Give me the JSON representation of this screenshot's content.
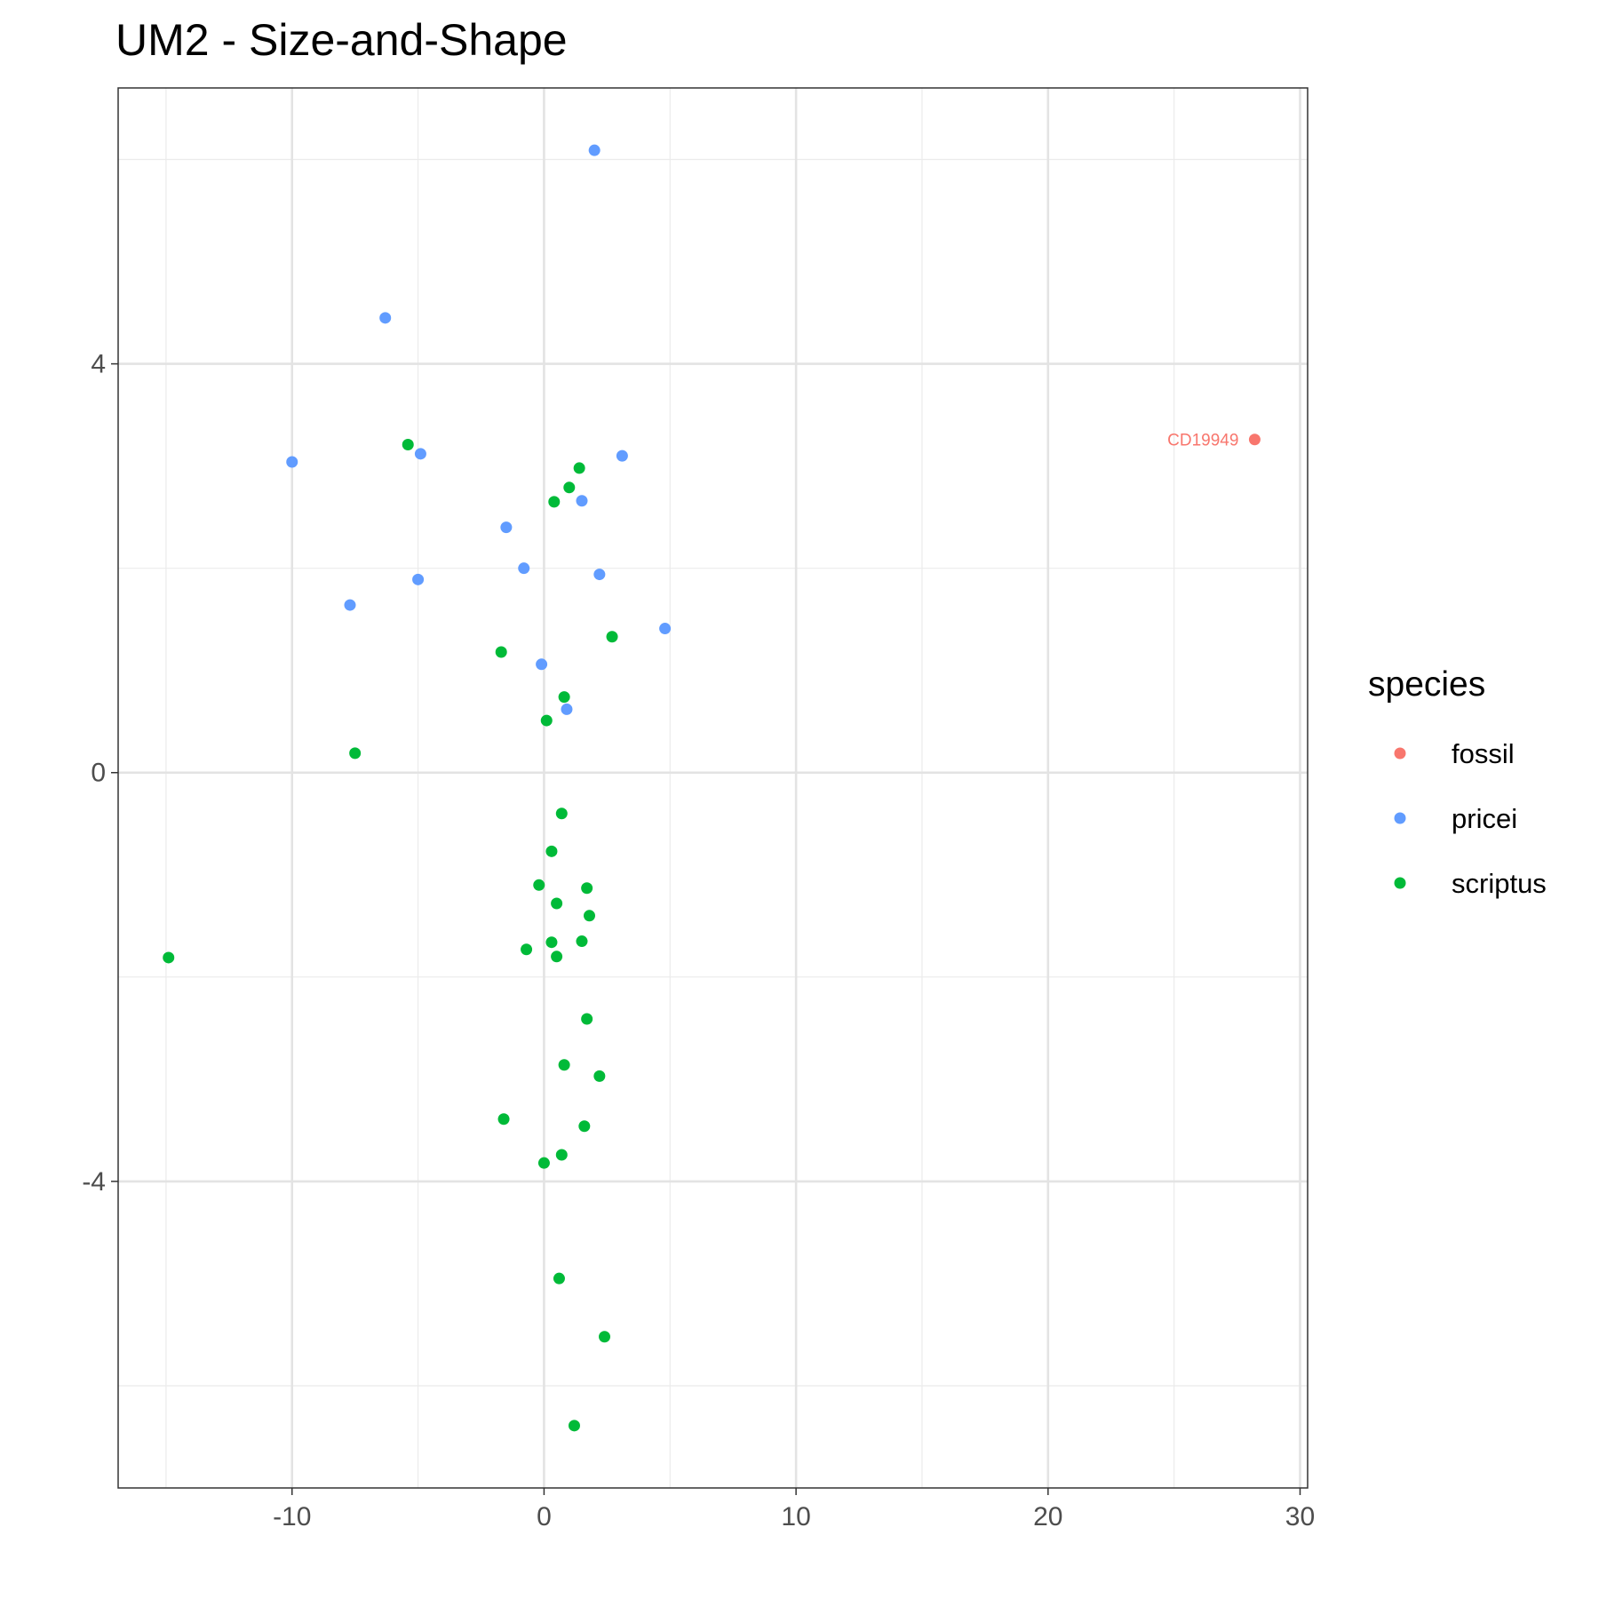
{
  "chart_data": {
    "type": "scatter",
    "title": "UM2 - Size-and-Shape",
    "xlabel": "",
    "ylabel": "",
    "xlim": [
      -16.9,
      30.3
    ],
    "ylim": [
      -7.0,
      6.7
    ],
    "x_major_ticks": [
      -10,
      0,
      10,
      20,
      30
    ],
    "x_minor_ticks": [
      -15,
      -5,
      5,
      15,
      25
    ],
    "y_major_ticks": [
      -4,
      0,
      4
    ],
    "y_minor_ticks": [
      -6,
      -2,
      2,
      6
    ],
    "x_tick_labels": [
      "-10",
      "0",
      "10",
      "20",
      "30"
    ],
    "y_tick_labels": [
      "-4",
      "0",
      "4"
    ],
    "grid": true,
    "legend": {
      "title": "species",
      "placement": "right"
    },
    "series": [
      {
        "name": "fossil",
        "color": "#F8766D",
        "points": [
          {
            "x": 28.2,
            "y": 3.26,
            "label": "CD19949"
          }
        ]
      },
      {
        "name": "pricei",
        "color": "#619CFF",
        "points": [
          {
            "x": 2.0,
            "y": 6.09
          },
          {
            "x": -6.3,
            "y": 4.45
          },
          {
            "x": -10.0,
            "y": 3.04
          },
          {
            "x": -4.9,
            "y": 3.12
          },
          {
            "x": 3.1,
            "y": 3.1
          },
          {
            "x": 1.5,
            "y": 2.66
          },
          {
            "x": -1.5,
            "y": 2.4
          },
          {
            "x": -0.8,
            "y": 2.0
          },
          {
            "x": 2.2,
            "y": 1.94
          },
          {
            "x": -5.0,
            "y": 1.89
          },
          {
            "x": -7.7,
            "y": 1.64
          },
          {
            "x": 4.8,
            "y": 1.41
          },
          {
            "x": -0.1,
            "y": 1.06
          },
          {
            "x": 0.9,
            "y": 0.62
          }
        ]
      },
      {
        "name": "scriptus",
        "color": "#00BA38",
        "points": [
          {
            "x": -5.4,
            "y": 3.21
          },
          {
            "x": 1.4,
            "y": 2.98
          },
          {
            "x": 1.0,
            "y": 2.79
          },
          {
            "x": 0.4,
            "y": 2.65
          },
          {
            "x": 2.7,
            "y": 1.33
          },
          {
            "x": -1.7,
            "y": 1.18
          },
          {
            "x": 0.8,
            "y": 0.74
          },
          {
            "x": 0.1,
            "y": 0.51
          },
          {
            "x": -7.5,
            "y": 0.19
          },
          {
            "x": 0.7,
            "y": -0.4
          },
          {
            "x": 0.3,
            "y": -0.77
          },
          {
            "x": -0.2,
            "y": -1.1
          },
          {
            "x": 1.7,
            "y": -1.13
          },
          {
            "x": 0.5,
            "y": -1.28
          },
          {
            "x": 1.8,
            "y": -1.4
          },
          {
            "x": 0.3,
            "y": -1.66
          },
          {
            "x": 1.5,
            "y": -1.65
          },
          {
            "x": -0.7,
            "y": -1.73
          },
          {
            "x": 0.5,
            "y": -1.8
          },
          {
            "x": -14.9,
            "y": -1.81
          },
          {
            "x": 1.7,
            "y": -2.41
          },
          {
            "x": 0.8,
            "y": -2.86
          },
          {
            "x": 2.2,
            "y": -2.97
          },
          {
            "x": -1.6,
            "y": -3.39
          },
          {
            "x": 1.6,
            "y": -3.46
          },
          {
            "x": 0.7,
            "y": -3.74
          },
          {
            "x": 0.0,
            "y": -3.82
          },
          {
            "x": 0.6,
            "y": -4.95
          },
          {
            "x": 2.4,
            "y": -5.52
          },
          {
            "x": 1.2,
            "y": -6.39
          }
        ]
      }
    ]
  }
}
